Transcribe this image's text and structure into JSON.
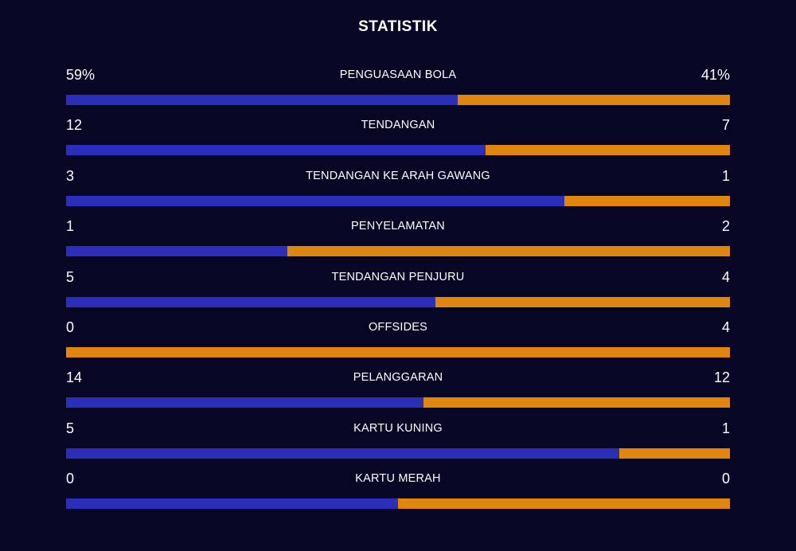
{
  "title": "STATISTIK",
  "colors": {
    "background": "#070624",
    "home": "#2B2EB8",
    "away": "#E0860F"
  },
  "stats": [
    {
      "label": "PENGUASAAN BOLA",
      "home": "59%",
      "away": "41%",
      "home_share": 0.59
    },
    {
      "label": "TENDANGAN",
      "home": "12",
      "away": "7",
      "home_share": 0.632
    },
    {
      "label": "TENDANGAN KE ARAH GAWANG",
      "home": "3",
      "away": "1",
      "home_share": 0.75
    },
    {
      "label": "PENYELAMATAN",
      "home": "1",
      "away": "2",
      "home_share": 0.333
    },
    {
      "label": "TENDANGAN PENJURU",
      "home": "5",
      "away": "4",
      "home_share": 0.556
    },
    {
      "label": "OFFSIDES",
      "home": "0",
      "away": "4",
      "home_share": 0.0
    },
    {
      "label": "PELANGGARAN",
      "home": "14",
      "away": "12",
      "home_share": 0.538
    },
    {
      "label": "KARTU KUNING",
      "home": "5",
      "away": "1",
      "home_share": 0.833
    },
    {
      "label": "KARTU MERAH",
      "home": "0",
      "away": "0",
      "home_share": 0.5
    }
  ]
}
